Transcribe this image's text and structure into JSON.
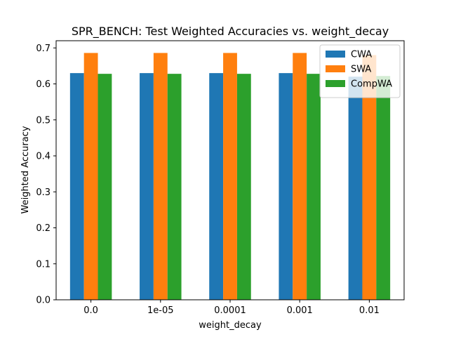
{
  "chart_data": {
    "type": "bar",
    "title": "SPR_BENCH: Test Weighted Accuracies vs. weight_decay",
    "xlabel": "weight_decay",
    "ylabel": "Weighted Accuracy",
    "categories": [
      "0.0",
      "1e-05",
      "0.0001",
      "0.001",
      "0.01"
    ],
    "ylim": [
      0,
      0.72
    ],
    "yticks": [
      0.0,
      0.1,
      0.2,
      0.3,
      0.4,
      0.5,
      0.6,
      0.7
    ],
    "ytick_labels": [
      "0.0",
      "0.1",
      "0.2",
      "0.3",
      "0.4",
      "0.5",
      "0.6",
      "0.7"
    ],
    "grid": false,
    "legend_position": "top-right",
    "series": [
      {
        "name": "CWA",
        "color": "#1f77b4",
        "values": [
          0.63,
          0.63,
          0.63,
          0.63,
          0.62
        ]
      },
      {
        "name": "SWA",
        "color": "#ff7f0e",
        "values": [
          0.686,
          0.686,
          0.686,
          0.686,
          0.68
        ]
      },
      {
        "name": "CompWA",
        "color": "#2ca02c",
        "values": [
          0.628,
          0.628,
          0.628,
          0.628,
          0.622
        ]
      }
    ]
  }
}
